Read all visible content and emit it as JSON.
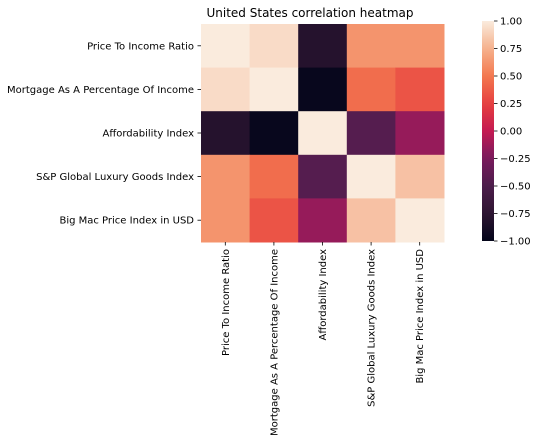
{
  "chart_data": {
    "type": "heatmap",
    "title": "United States correlation heatmap",
    "row_labels": [
      "Price To Income Ratio",
      "Mortgage As A Percentage Of Income",
      "Affordability Index",
      "S&P Global Luxury Goods Index",
      "Big Mac Price Index in USD"
    ],
    "col_labels": [
      "Price To Income Ratio",
      "Mortgage As A Percentage Of Income",
      "Affordability Index",
      "S&P Global Luxury Goods Index",
      "Big Mac Price Index in USD"
    ],
    "values": [
      [
        1.0,
        0.93,
        -0.8,
        0.62,
        0.62
      ],
      [
        0.93,
        1.0,
        -0.97,
        0.45,
        0.34
      ],
      [
        -0.8,
        -0.97,
        1.0,
        -0.45,
        -0.15
      ],
      [
        0.62,
        0.45,
        -0.45,
        1.0,
        0.82
      ],
      [
        0.62,
        0.34,
        -0.15,
        0.82,
        1.0
      ]
    ],
    "vmin": -1.0,
    "vmax": 1.0,
    "colorbar": {
      "ticks": [
        1.0,
        0.75,
        0.5,
        0.25,
        0.0,
        -0.25,
        -0.5,
        -0.75,
        -1.0
      ],
      "tick_labels": [
        "1.00",
        "0.75",
        "0.50",
        "0.25",
        "0.00",
        "−0.25",
        "−0.50",
        "−0.75",
        "−1.00"
      ]
    },
    "colormap": "rocket"
  }
}
